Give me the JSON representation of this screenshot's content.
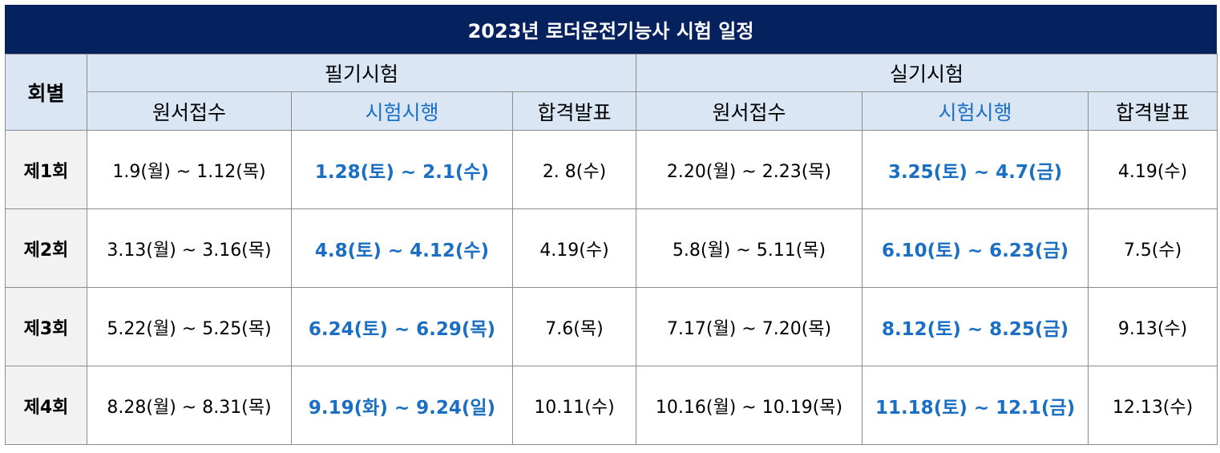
{
  "title": "2023년 로더운전기능사 시험 일정",
  "headers": {
    "round": "회별",
    "written": "필기시험",
    "practical": "실기시험",
    "application": "원서접수",
    "exam": "시험시행",
    "result": "합격발표"
  },
  "colors": {
    "title_bg": "#06225e",
    "header_bg": "#dae6f4",
    "exam_text": "#1a6fc4",
    "round_bg": "#f2f2f2"
  },
  "rows": [
    {
      "round": "제1회",
      "written_application": "1.9(월) ~ 1.12(목)",
      "written_exam": "1.28(토) ~ 2.1(수)",
      "written_result": "2. 8(수)",
      "practical_application": "2.20(월) ~ 2.23(목)",
      "practical_exam": "3.25(토) ~ 4.7(금)",
      "practical_result": "4.19(수)"
    },
    {
      "round": "제2회",
      "written_application": "3.13(월) ~ 3.16(목)",
      "written_exam": "4.8(토) ~ 4.12(수)",
      "written_result": "4.19(수)",
      "practical_application": "5.8(월) ~ 5.11(목)",
      "practical_exam": "6.10(토) ~ 6.23(금)",
      "practical_result": "7.5(수)"
    },
    {
      "round": "제3회",
      "written_application": "5.22(월) ~ 5.25(목)",
      "written_exam": "6.24(토) ~ 6.29(목)",
      "written_result": "7.6(목)",
      "practical_application": "7.17(월) ~ 7.20(목)",
      "practical_exam": "8.12(토) ~ 8.25(금)",
      "practical_result": "9.13(수)"
    },
    {
      "round": "제4회",
      "written_application": "8.28(월) ~ 8.31(목)",
      "written_exam": "9.19(화) ~ 9.24(일)",
      "written_result": "10.11(수)",
      "practical_application": "10.16(월) ~ 10.19(목)",
      "practical_exam": "11.18(토) ~ 12.1(금)",
      "practical_result": "12.13(수)"
    }
  ]
}
